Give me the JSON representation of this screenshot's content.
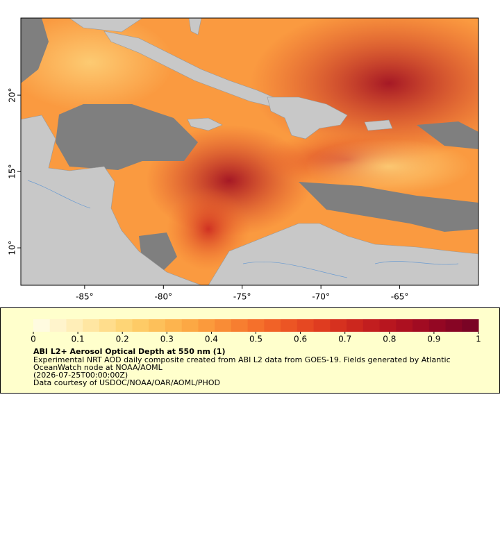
{
  "map": {
    "lonlim": [
      -89.05,
      -60.0
    ],
    "latlim": [
      7.55,
      25.05
    ],
    "lonticks": [
      {
        "value": -85,
        "label": "-85°"
      },
      {
        "value": -80,
        "label": "-80°"
      },
      {
        "value": -75,
        "label": "-75°"
      },
      {
        "value": -70,
        "label": "-70°"
      },
      {
        "value": -65,
        "label": "-65°"
      }
    ],
    "latticks": [
      {
        "value": 10,
        "label": "10°"
      },
      {
        "value": 15,
        "label": "15°"
      },
      {
        "value": 20,
        "label": "20°"
      }
    ]
  },
  "legend": {
    "colorbar": {
      "lim": [
        0,
        1
      ],
      "ticks": [
        0,
        0.1,
        0.2,
        0.3,
        0.4,
        0.5,
        0.6,
        0.7,
        0.8,
        0.9,
        1
      ],
      "colors": [
        "#fffbe0",
        "#fff4cc",
        "#ffeeb8",
        "#ffe6a2",
        "#ffdd8c",
        "#fed576",
        "#fecb66",
        "#fdc05a",
        "#fdb44e",
        "#fca844",
        "#fb9a3c",
        "#f98c36",
        "#f77e30",
        "#f5702b",
        "#f16227",
        "#ec5524",
        "#e64822",
        "#df3c20",
        "#d6311f",
        "#cc271e",
        "#c21e1f",
        "#b8161f",
        "#ad1020",
        "#a10b22",
        "#940723",
        "#870524",
        "#7a0425"
      ]
    },
    "title": "ABI L2+ Aerosol Optical Depth at 550 nm (1)",
    "lines": [
      "Experimental NRT AOD daily composite created from ABI L2 data from GOES-19. Fields generated by Atlantic",
      "OceanWatch node at NOAA/AOML",
      "(2026-07-25T00:00:00Z)",
      "Data courtesy of USDOC/NOAA/OAR/AOML/PHOD"
    ]
  }
}
